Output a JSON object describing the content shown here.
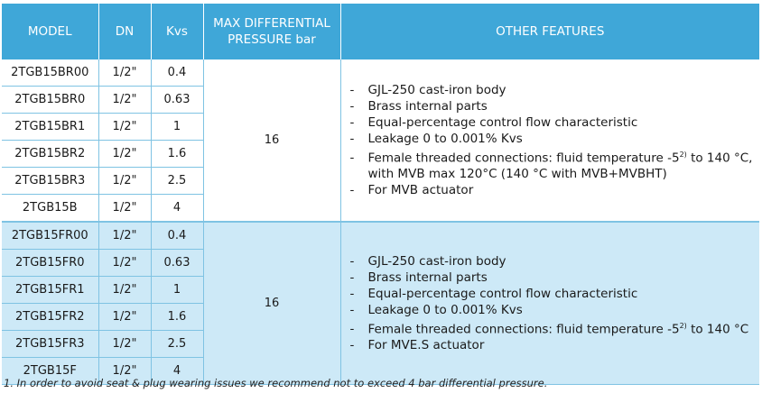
{
  "header": {
    "model": "MODEL",
    "dn": "DN",
    "kvs": "Kvs",
    "max_diff_line1": "MAX DIFFERENTIAL",
    "max_diff_line2": "PRESSURE bar",
    "features": "OTHER FEATURES"
  },
  "groups": [
    {
      "max_diff": "16",
      "rows": [
        {
          "model": "2TGB15BR00",
          "dn": "1/2\"",
          "kvs": "0.4"
        },
        {
          "model": "2TGB15BR0",
          "dn": "1/2\"",
          "kvs": "0.63"
        },
        {
          "model": "2TGB15BR1",
          "dn": "1/2\"",
          "kvs": "1"
        },
        {
          "model": "2TGB15BR2",
          "dn": "1/2\"",
          "kvs": "1.6"
        },
        {
          "model": "2TGB15BR3",
          "dn": "1/2\"",
          "kvs": "2.5"
        },
        {
          "model": "2TGB15B",
          "dn": "1/2\"",
          "kvs": "4"
        }
      ],
      "features": [
        "GJL-250 cast-iron body",
        "Brass internal parts",
        "Equal-percentage control flow characteristic",
        "Leakage 0 to 0.001% Kvs",
        "Female threaded connections: fluid temperature -5",
        "For MVB actuator"
      ],
      "temp_sup": "2)",
      "temp_tail": " to 140 °C, with MVB max 120°C (140 °C with MVB+MVBHT)"
    },
    {
      "max_diff": "16",
      "rows": [
        {
          "model": "2TGB15FR00",
          "dn": "1/2\"",
          "kvs": "0.4"
        },
        {
          "model": "2TGB15FR0",
          "dn": "1/2\"",
          "kvs": "0.63"
        },
        {
          "model": "2TGB15FR1",
          "dn": "1/2\"",
          "kvs": "1"
        },
        {
          "model": "2TGB15FR2",
          "dn": "1/2\"",
          "kvs": "1.6"
        },
        {
          "model": "2TGB15FR3",
          "dn": "1/2\"",
          "kvs": "2.5"
        },
        {
          "model": "2TGB15F",
          "dn": "1/2\"",
          "kvs": "4"
        }
      ],
      "features": [
        "GJL-250 cast-iron body",
        "Brass internal parts",
        "Equal-percentage control flow characteristic",
        "Leakage 0 to 0.001% Kvs",
        "Female threaded connections: fluid temperature -5",
        "For MVE.S actuator"
      ],
      "temp_sup": "2)",
      "temp_tail": " to 140 °C"
    }
  ],
  "footnote": "1.  In order to avoid seat & plug wearing issues we recommend not to exceed  4 bar differential pressure.",
  "colors": {
    "header_bg": "#3fa7d8",
    "group_b_bg": "#cde9f7",
    "grid": "#7fc3e3"
  }
}
